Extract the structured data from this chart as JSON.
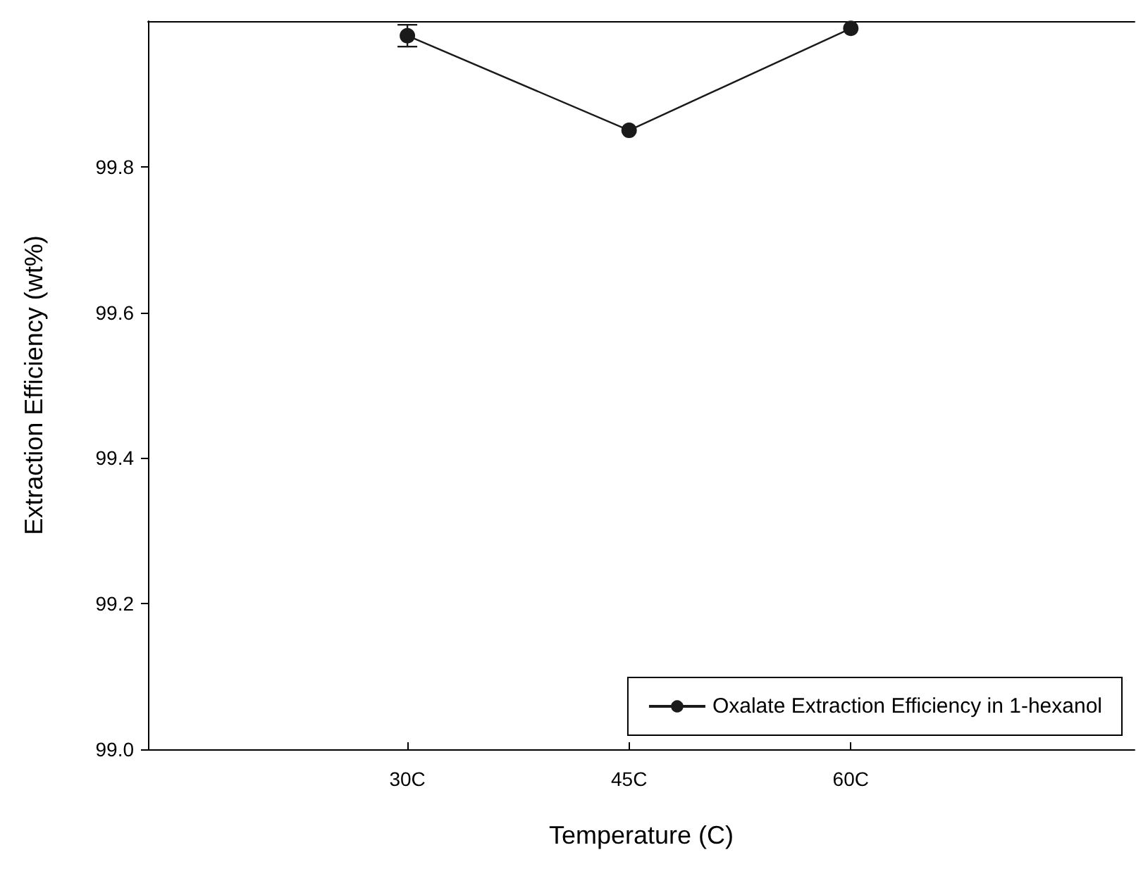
{
  "chart_data": {
    "type": "line",
    "xlabel": "Temperature (C)",
    "ylabel": "Extraction Efficiency (wt%)",
    "categories": [
      "30C",
      "45C",
      "60C"
    ],
    "series": [
      {
        "name": "Oxalate Extraction Efficiency in 1-hexanol",
        "color": "#1a1a1a",
        "values": [
          99.98,
          99.85,
          99.99
        ],
        "errors": [
          0.015,
          null,
          null
        ]
      }
    ],
    "ylim": [
      99.0,
      100.0
    ],
    "yticks": [
      {
        "value": 99,
        "label": "99.0"
      },
      {
        "value": 99.2,
        "label": "99.2"
      },
      {
        "value": 99.4,
        "label": "99.4"
      },
      {
        "value": 99.6,
        "label": "99.6"
      },
      {
        "value": 99.8,
        "label": "99.8"
      }
    ],
    "legend": "bottom right",
    "marker": "circle",
    "line_style": "solid",
    "grid": false
  }
}
